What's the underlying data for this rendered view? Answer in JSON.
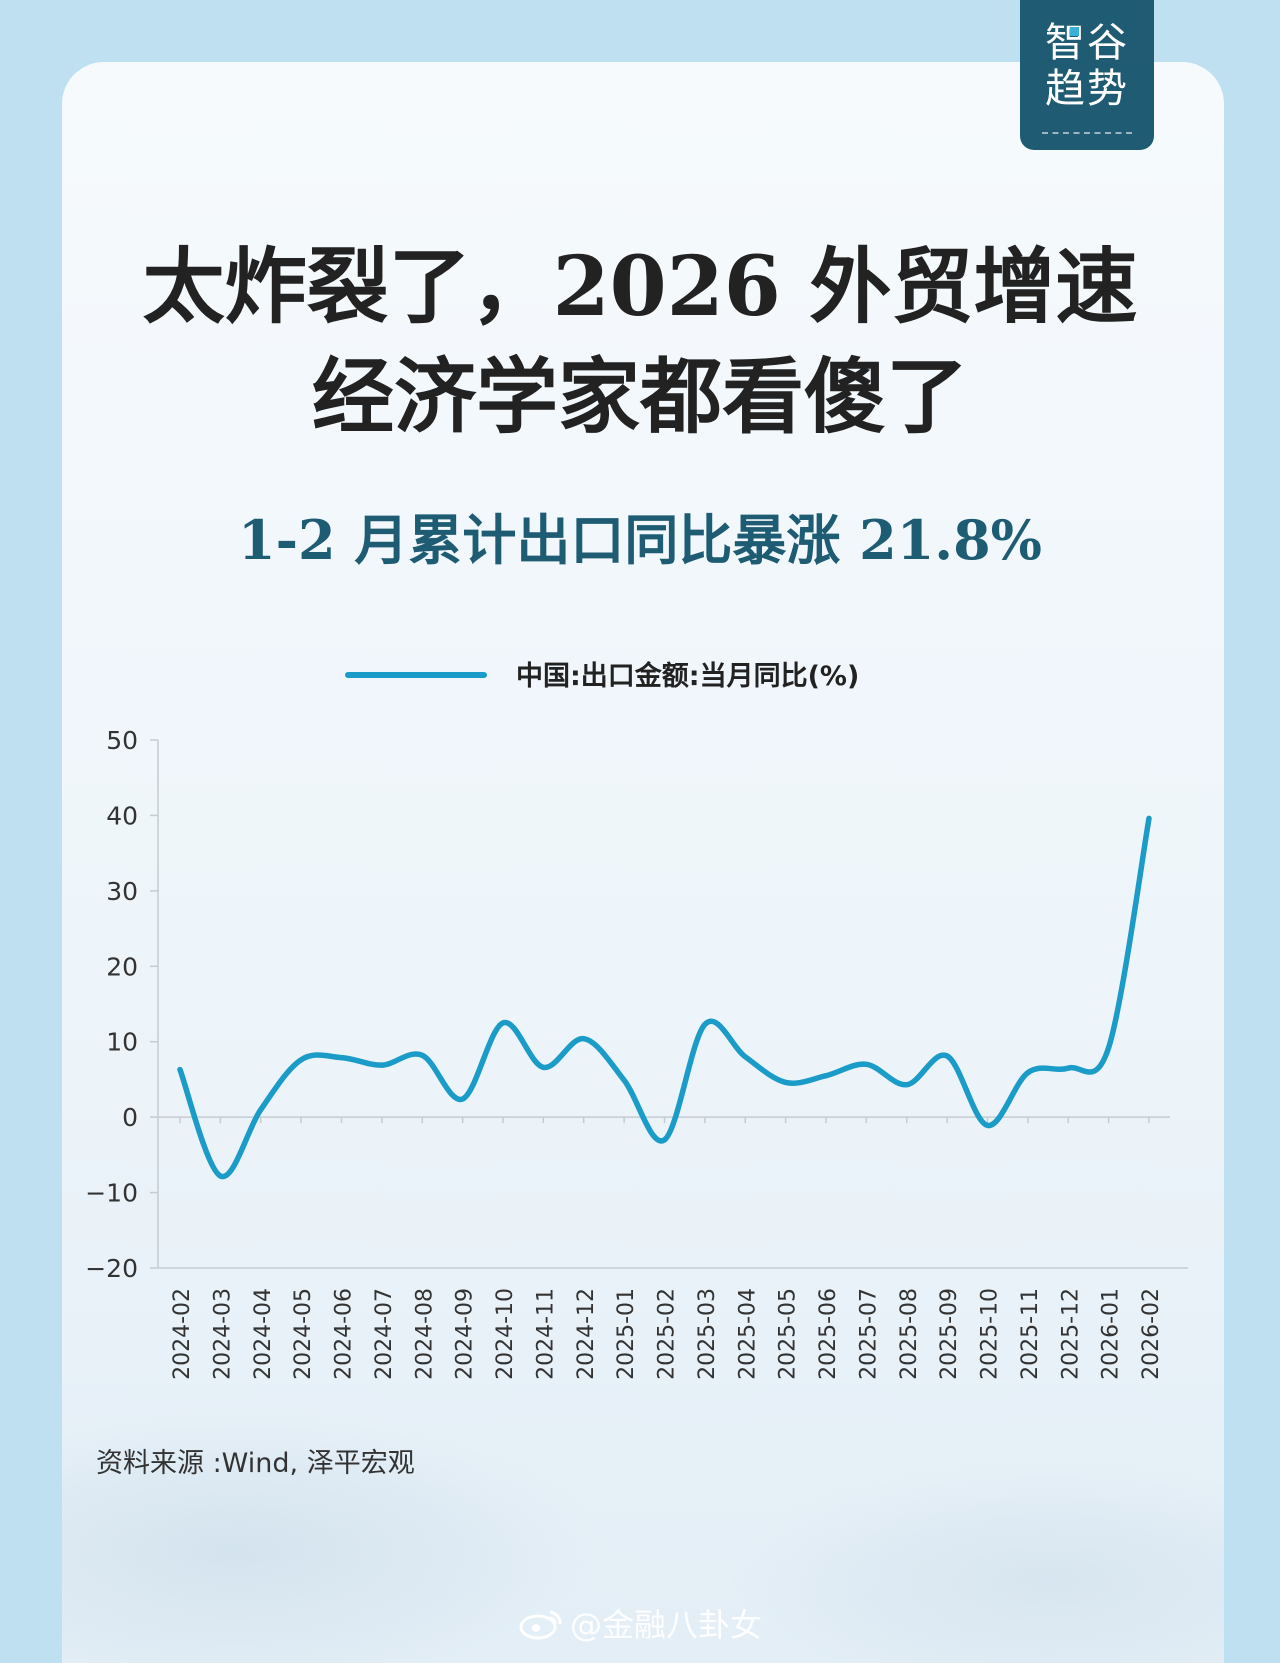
{
  "brand": {
    "line1": "智谷",
    "line2": "趋势"
  },
  "headline": {
    "line1": "太炸裂了，2026 外贸增速",
    "line2": "经济学家都看傻了"
  },
  "subheadline": "1-2 月累计出口同比暴涨 21.8%",
  "source": "资料来源 :Wind, 泽平宏观",
  "watermark": {
    "text": "@金融八卦女",
    "icon": "weibo-icon"
  },
  "colors": {
    "line": "#1a9bc8",
    "subheadline": "#1e5c74",
    "brand_bg": "#1f5b73"
  },
  "chart_data": {
    "type": "line",
    "categories": [
      "2024-02",
      "2024-03",
      "2024-04",
      "2024-05",
      "2024-06",
      "2024-07",
      "2024-08",
      "2024-09",
      "2024-10",
      "2024-11",
      "2024-12",
      "2025-01",
      "2025-02",
      "2025-03",
      "2025-04",
      "2025-05",
      "2025-06",
      "2025-07",
      "2025-08",
      "2025-09",
      "2025-10",
      "2025-11",
      "2025-12",
      "2026-01",
      "2026-02"
    ],
    "series": [
      {
        "name": "中国:出口金额:当月同比(%)",
        "values": [
          6.3,
          -7.8,
          1.0,
          7.6,
          7.9,
          6.9,
          8.2,
          2.4,
          12.5,
          6.6,
          10.4,
          4.9,
          -3.0,
          12.3,
          8.0,
          4.6,
          5.5,
          7.0,
          4.3,
          8.1,
          -1.1,
          5.9,
          6.5,
          9.2,
          39.6
        ]
      }
    ],
    "title": "",
    "xlabel": "",
    "ylabel": "",
    "ylim": [
      -20,
      50
    ],
    "yticks": [
      50,
      40,
      30,
      20,
      10,
      0,
      -10,
      -20
    ],
    "legend": "top-center",
    "grid": false
  }
}
